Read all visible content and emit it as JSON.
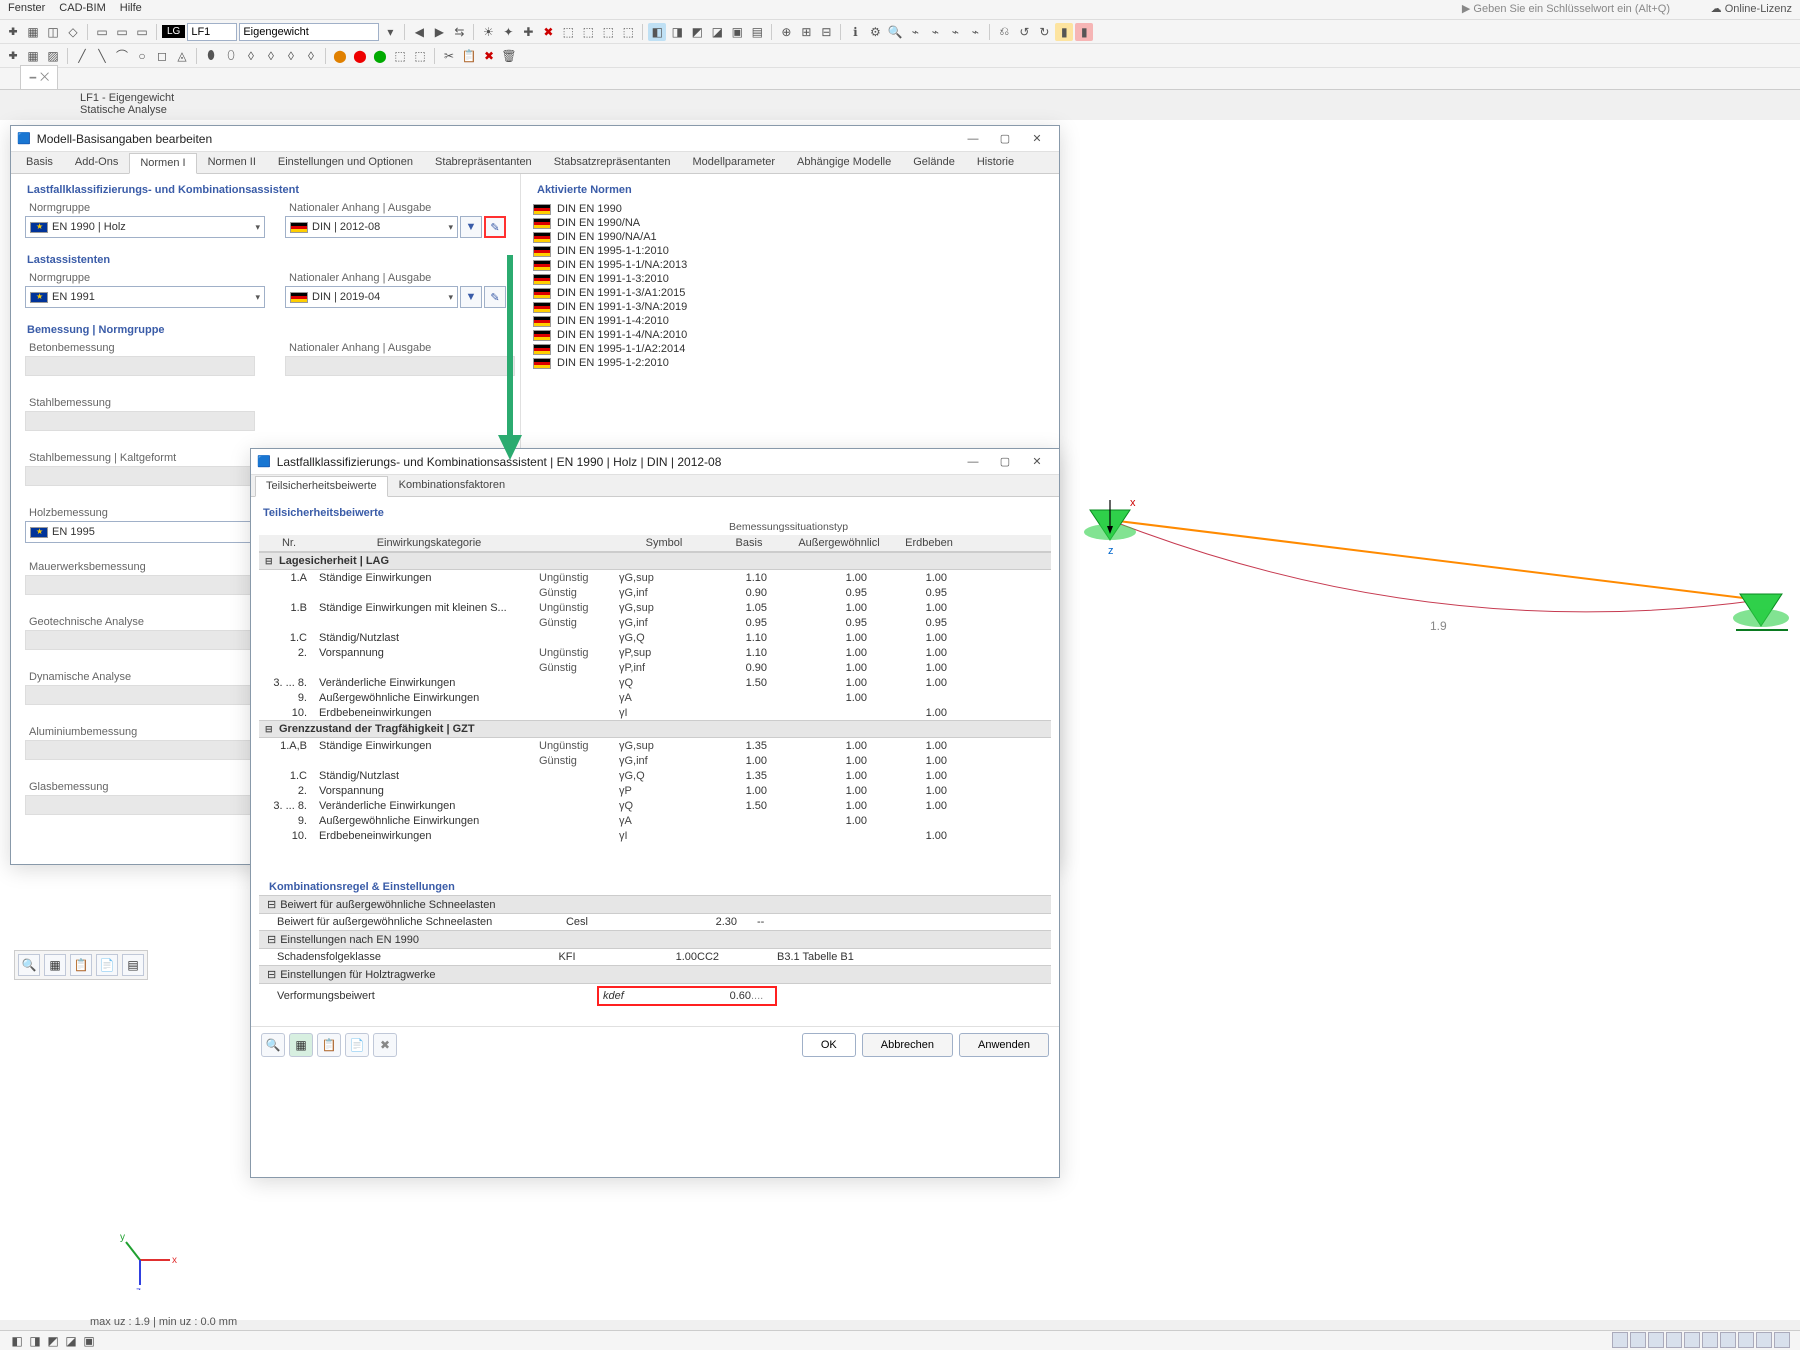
{
  "menubar": {
    "items": [
      "Fenster",
      "CAD-BIM",
      "Hilfe"
    ]
  },
  "top_right": {
    "search_placeholder": "Geben Sie ein Schlüsselwort ein (Alt+Q)",
    "license": "Online-Lizenz"
  },
  "toolbar2": {
    "lg_label": "LG",
    "lf_combo": "LF1",
    "eigengewicht": "Eigengewicht"
  },
  "doctab": {
    "title": "",
    "info1": "LF1 - Eigengewicht",
    "info2": "Statische Analyse"
  },
  "dialog1": {
    "title": "Modell-Basisangaben bearbeiten",
    "tabs": [
      "Basis",
      "Add-Ons",
      "Normen I",
      "Normen II",
      "Einstellungen und Optionen",
      "Stabrepräsentanten",
      "Stabsatzrepräsentanten",
      "Modellparameter",
      "Abhängige Modelle",
      "Gelände",
      "Historie"
    ],
    "active_tab": 2,
    "sections": {
      "classif_title": "Lastfallklassifizierungs- und Kombinationsassistent",
      "normgruppe_label": "Normgruppe",
      "anhang_label": "Nationaler Anhang | Ausgabe",
      "en1990": "EN 1990 | Holz",
      "din2012": "DIN | 2012-08",
      "lastassist": "Lastassistenten",
      "en1991": "EN 1991",
      "din2019": "DIN | 2019-04",
      "bemessung": "Bemessung | Normgruppe",
      "design_items": [
        "Betonbemessung",
        "Stahlbemessung",
        "Stahlbemessung | Kaltgeformt",
        "Holzbemessung",
        "Mauerwerksbemessung",
        "Geotechnische Analyse",
        "Dynamische Analyse",
        "Aluminiumbemessung",
        "Glasbemessung"
      ],
      "en1995": "EN 1995"
    },
    "norms": {
      "heading": "Aktivierte Normen",
      "items": [
        "DIN EN 1990",
        "DIN EN 1990/NA",
        "DIN EN 1990/NA/A1",
        "DIN EN 1995-1-1:2010",
        "DIN EN 1995-1-1/NA:2013",
        "DIN EN 1991-1-3:2010",
        "DIN EN 1991-1-3/A1:2015",
        "DIN EN 1991-1-3/NA:2019",
        "DIN EN 1991-1-4:2010",
        "DIN EN 1991-1-4/NA:2010",
        "DIN EN 1995-1-1/A2:2014",
        "DIN EN 1995-1-2:2010"
      ]
    }
  },
  "dialog2": {
    "title": "Lastfallklassifizierungs- und Kombinationsassistent | EN 1990 | Holz | DIN | 2012-08",
    "tabs": [
      "Teilsicherheitsbeiwerte",
      "Kombinationsfaktoren"
    ],
    "active_tab": 0,
    "header": {
      "title": "Teilsicherheitsbeiwerte",
      "col_nr": "Nr.",
      "col_kat": "Einwirkungskategorie",
      "col_sym": "Symbol",
      "col_basis": "Basis",
      "super_bem": "Bemessungssituationstyp",
      "col_auss": "Außergewöhnlicl",
      "col_erd": "Erdbeben"
    },
    "groups": [
      {
        "title": "Lagesicherheit | LAG",
        "rows": [
          {
            "nr": "1.A",
            "cat": "Ständige Einwirkungen",
            "cond": "Ungünstig",
            "sym": "γG,sup",
            "v1": "1.10",
            "v2": "1.00",
            "v3": "1.00"
          },
          {
            "nr": "",
            "cat": "",
            "cond": "Günstig",
            "sym": "γG,inf",
            "v1": "0.90",
            "v2": "0.95",
            "v3": "0.95"
          },
          {
            "nr": "1.B",
            "cat": "Ständige Einwirkungen mit kleinen S...",
            "cond": "Ungünstig",
            "sym": "γG,sup",
            "v1": "1.05",
            "v2": "1.00",
            "v3": "1.00"
          },
          {
            "nr": "",
            "cat": "",
            "cond": "Günstig",
            "sym": "γG,inf",
            "v1": "0.95",
            "v2": "0.95",
            "v3": "0.95"
          },
          {
            "nr": "1.C",
            "cat": "Ständig/Nutzlast",
            "cond": "",
            "sym": "γG,Q",
            "v1": "1.10",
            "v2": "1.00",
            "v3": "1.00"
          },
          {
            "nr": "2.",
            "cat": "Vorspannung",
            "cond": "Ungünstig",
            "sym": "γP,sup",
            "v1": "1.10",
            "v2": "1.00",
            "v3": "1.00"
          },
          {
            "nr": "",
            "cat": "",
            "cond": "Günstig",
            "sym": "γP,inf",
            "v1": "0.90",
            "v2": "1.00",
            "v3": "1.00"
          },
          {
            "nr": "3. ... 8.",
            "cat": "Veränderliche Einwirkungen",
            "cond": "",
            "sym": "γQ",
            "v1": "1.50",
            "v2": "1.00",
            "v3": "1.00"
          },
          {
            "nr": "9.",
            "cat": "Außergewöhnliche Einwirkungen",
            "cond": "",
            "sym": "γA",
            "v1": "",
            "v2": "1.00",
            "v3": ""
          },
          {
            "nr": "10.",
            "cat": "Erdbebeneinwirkungen",
            "cond": "",
            "sym": "γI",
            "v1": "",
            "v2": "",
            "v3": "1.00"
          }
        ]
      },
      {
        "title": "Grenzzustand der Tragfähigkeit | GZT",
        "rows": [
          {
            "nr": "1.A,B",
            "cat": "Ständige Einwirkungen",
            "cond": "Ungünstig",
            "sym": "γG,sup",
            "v1": "1.35",
            "v2": "1.00",
            "v3": "1.00"
          },
          {
            "nr": "",
            "cat": "",
            "cond": "Günstig",
            "sym": "γG,inf",
            "v1": "1.00",
            "v2": "1.00",
            "v3": "1.00"
          },
          {
            "nr": "1.C",
            "cat": "Ständig/Nutzlast",
            "cond": "",
            "sym": "γG,Q",
            "v1": "1.35",
            "v2": "1.00",
            "v3": "1.00"
          },
          {
            "nr": "2.",
            "cat": "Vorspannung",
            "cond": "",
            "sym": "γP",
            "v1": "1.00",
            "v2": "1.00",
            "v3": "1.00"
          },
          {
            "nr": "3. ... 8.",
            "cat": "Veränderliche Einwirkungen",
            "cond": "",
            "sym": "γQ",
            "v1": "1.50",
            "v2": "1.00",
            "v3": "1.00"
          },
          {
            "nr": "9.",
            "cat": "Außergewöhnliche Einwirkungen",
            "cond": "",
            "sym": "γA",
            "v1": "",
            "v2": "1.00",
            "v3": ""
          },
          {
            "nr": "10.",
            "cat": "Erdbebeneinwirkungen",
            "cond": "",
            "sym": "γI",
            "v1": "",
            "v2": "",
            "v3": "1.00"
          }
        ]
      }
    ],
    "combo_h": "Kombinationsregel & Einstellungen",
    "snow": {
      "group": "Beiwert für außergewöhnliche Schneelasten",
      "label": "Beiwert für außergewöhnliche Schneelasten",
      "sym": "Cesl",
      "val": "2.30",
      "tail": "--"
    },
    "en1990s": {
      "group": "Einstellungen nach EN 1990",
      "label": "Schadensfolgeklasse",
      "sym": "KFI",
      "val": "1.00",
      "cc": "CC2",
      "ref": "B3.1 Tabelle B1"
    },
    "timber": {
      "group": "Einstellungen für Holztragwerke",
      "label": "Verformungsbeiwert",
      "sym": "kdef",
      "val": "0.60",
      "tail": "...."
    },
    "buttons": {
      "ok": "OK",
      "cancel": "Abbrechen",
      "apply": "Anwenden"
    }
  },
  "canvas": {
    "dist_label": "1.9"
  },
  "status": {
    "line": "max uz : 1.9 | min uz : 0.0 mm"
  },
  "colors": {
    "arrow": "#2bab70",
    "beam": "#ff8a00",
    "curve": "#c63a50",
    "support": "#2fd04a",
    "highlight_border": "#ff2020",
    "section_blue": "#3a5ca8"
  }
}
